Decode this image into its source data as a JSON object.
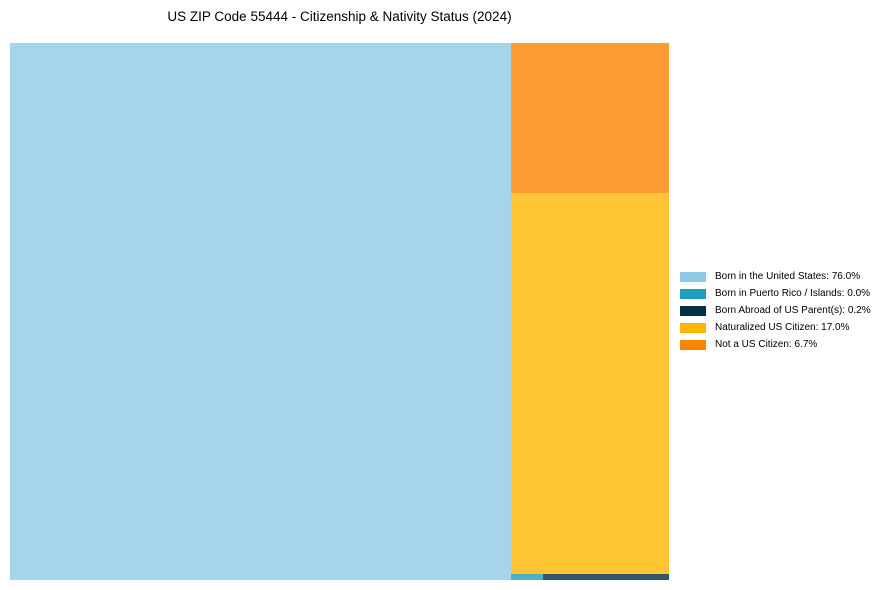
{
  "chart_data": {
    "type": "treemap",
    "title": "US ZIP Code 55444 - Citizenship & Nativity Status (2024)",
    "items": [
      {
        "name": "Born in the United States",
        "value": 76.0,
        "label": "Born in the United States: 76.0%",
        "color": "#8ecae6"
      },
      {
        "name": "Born in Puerto Rico / Islands",
        "value": 0.0,
        "label": "Born in Puerto Rico / Islands: 0.0%",
        "color": "#219ebc"
      },
      {
        "name": "Born Abroad of US Parent(s)",
        "value": 0.2,
        "label": "Born Abroad of US Parent(s): 0.2%",
        "color": "#023047"
      },
      {
        "name": "Naturalized US Citizen",
        "value": 17.0,
        "label": "Naturalized US Citizen: 17.0%",
        "color": "#ffb703"
      },
      {
        "name": "Not a US Citizen",
        "value": 6.7,
        "label": "Not a US Citizen: 6.7%",
        "color": "#fb8500"
      }
    ],
    "legend_position": "right"
  }
}
